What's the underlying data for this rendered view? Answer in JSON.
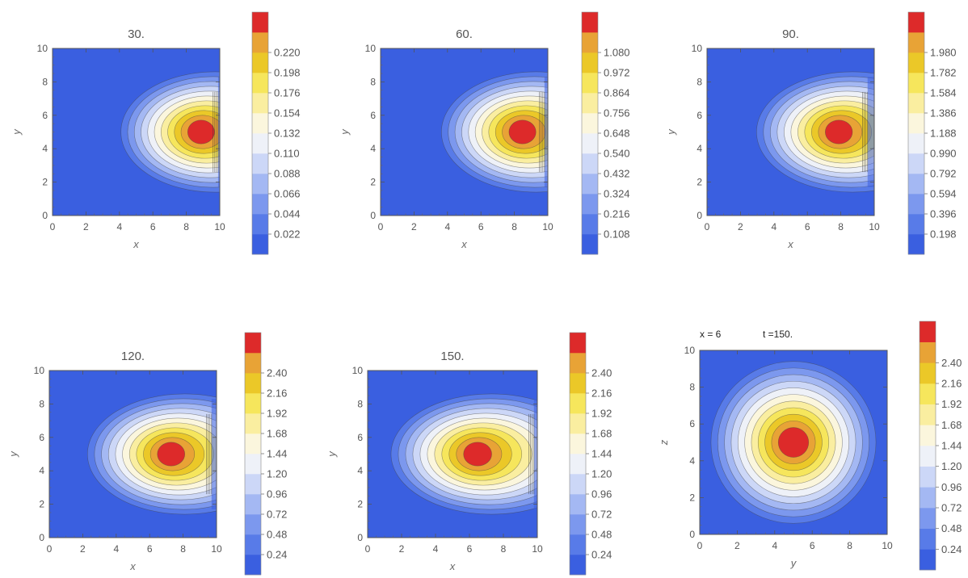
{
  "chart_data": [
    {
      "type": "heatmap",
      "title": "30.",
      "xlabel": "x",
      "ylabel": "y",
      "xlim": [
        0,
        10
      ],
      "ylim": [
        0,
        10
      ],
      "xticks": [
        "0",
        "2",
        "4",
        "6",
        "8",
        "10"
      ],
      "yticks": [
        "0",
        "2",
        "4",
        "6",
        "8",
        "10"
      ],
      "colorbar": [
        "0.022",
        "0.044",
        "0.066",
        "0.088",
        "0.110",
        "0.132",
        "0.154",
        "0.176",
        "0.198",
        "0.220"
      ],
      "peak": {
        "x": 8.8,
        "y": 5,
        "value": 0.23
      },
      "edge_x": 9.9
    },
    {
      "type": "heatmap",
      "title": "60.",
      "xlabel": "x",
      "ylabel": "y",
      "xlim": [
        0,
        10
      ],
      "ylim": [
        0,
        10
      ],
      "xticks": [
        "0",
        "2",
        "4",
        "6",
        "8",
        "10"
      ],
      "yticks": [
        "0",
        "2",
        "4",
        "6",
        "8",
        "10"
      ],
      "colorbar": [
        "0.108",
        "0.216",
        "0.324",
        "0.432",
        "0.540",
        "0.648",
        "0.756",
        "0.864",
        "0.972",
        "1.080"
      ],
      "peak": {
        "x": 8.4,
        "y": 5,
        "value": 1.1
      },
      "edge_x": 9.8
    },
    {
      "type": "heatmap",
      "title": "90.",
      "xlabel": "x",
      "ylabel": "y",
      "xlim": [
        0,
        10
      ],
      "ylim": [
        0,
        10
      ],
      "xticks": [
        "0",
        "2",
        "4",
        "6",
        "8",
        "10"
      ],
      "yticks": [
        "0",
        "2",
        "4",
        "6",
        "8",
        "10"
      ],
      "colorbar": [
        "0.198",
        "0.396",
        "0.594",
        "0.792",
        "0.990",
        "1.188",
        "1.386",
        "1.584",
        "1.782",
        "1.980"
      ],
      "peak": {
        "x": 7.8,
        "y": 5,
        "value": 2.05
      },
      "edge_x": 9.6
    },
    {
      "type": "heatmap",
      "title": "120.",
      "xlabel": "x",
      "ylabel": "y",
      "xlim": [
        0,
        10
      ],
      "ylim": [
        0,
        10
      ],
      "xticks": [
        "0",
        "2",
        "4",
        "6",
        "8",
        "10"
      ],
      "yticks": [
        "0",
        "2",
        "4",
        "6",
        "8",
        "10"
      ],
      "colorbar": [
        "0.24",
        "0.48",
        "0.72",
        "0.96",
        "1.20",
        "1.44",
        "1.68",
        "1.92",
        "2.16",
        "2.40"
      ],
      "peak": {
        "x": 7.2,
        "y": 5,
        "value": 2.45
      },
      "edge_x": 9.7
    },
    {
      "type": "heatmap",
      "title": "150.",
      "xlabel": "x",
      "ylabel": "y",
      "xlim": [
        0,
        10
      ],
      "ylim": [
        0,
        10
      ],
      "xticks": [
        "0",
        "2",
        "4",
        "6",
        "8",
        "10"
      ],
      "yticks": [
        "0",
        "2",
        "4",
        "6",
        "8",
        "10"
      ],
      "colorbar": [
        "0.24",
        "0.48",
        "0.72",
        "0.96",
        "1.20",
        "1.44",
        "1.68",
        "1.92",
        "2.16",
        "2.40"
      ],
      "peak": {
        "x": 6.4,
        "y": 5,
        "value": 2.6
      },
      "edge_x": 9.8
    },
    {
      "type": "heatmap",
      "title_left": "x = 6",
      "title_right": "t =150.",
      "xlabel": "y",
      "ylabel": "z",
      "xlim": [
        0,
        10
      ],
      "ylim": [
        0,
        10
      ],
      "xticks": [
        "0",
        "2",
        "4",
        "6",
        "8",
        "10"
      ],
      "yticks": [
        "0",
        "2",
        "4",
        "6",
        "8",
        "10"
      ],
      "colorbar": [
        "0.24",
        "0.48",
        "0.72",
        "0.96",
        "1.20",
        "1.44",
        "1.68",
        "1.92",
        "2.16",
        "2.40"
      ],
      "peak": {
        "x": 5,
        "y": 5,
        "value": 2.8
      }
    }
  ],
  "colors": {
    "background_level": "#3a5fe0",
    "peak": "#dd2a2a",
    "scale": [
      "#3a5fe0",
      "#587be8",
      "#7c98ee",
      "#a4b8f3",
      "#ccd7f7",
      "#eef1f8",
      "#fbf6dd",
      "#faeea0",
      "#f6e65c",
      "#ebc828",
      "#e8a336",
      "#dd2a2a"
    ]
  }
}
